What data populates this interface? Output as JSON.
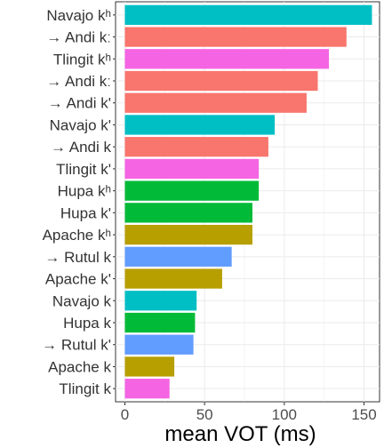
{
  "chart_data": {
    "type": "bar",
    "orientation": "horizontal",
    "xlabel": "mean VOT (ms)",
    "ylabel": "",
    "xlim": [
      0,
      158
    ],
    "xticks": [
      0,
      50,
      100,
      150
    ],
    "grid": true,
    "legend": "none",
    "categories": [
      "Navajo kʰ",
      "→ Andi kː",
      "Tlingit kʰ",
      "→ Andi kː",
      "→ Andi k'",
      "Navajo k'",
      "→ Andi k",
      "Tlingit k'",
      "Hupa kʰ",
      "Hupa k'",
      "Apache kʰ",
      "→ Rutul k",
      "Apache k'",
      "Navajo k",
      "Hupa k",
      "→ Rutul k'",
      "Apache k",
      "Tlingit k"
    ],
    "values": [
      155,
      139,
      128,
      121,
      114,
      94,
      90,
      84,
      84,
      80,
      80,
      67,
      61,
      45,
      44,
      43,
      31,
      28
    ],
    "languages": [
      "Navajo",
      "Andi",
      "Tlingit",
      "Andi",
      "Andi",
      "Navajo",
      "Andi",
      "Tlingit",
      "Hupa",
      "Hupa",
      "Apache",
      "Rutul",
      "Apache",
      "Navajo",
      "Hupa",
      "Rutul",
      "Apache",
      "Tlingit"
    ],
    "colors": {
      "Navajo": "#00BFC4",
      "Andi": "#F8766D",
      "Tlingit": "#F564E3",
      "Hupa": "#00BA38",
      "Apache": "#B79F00",
      "Rutul": "#619CFF"
    }
  }
}
